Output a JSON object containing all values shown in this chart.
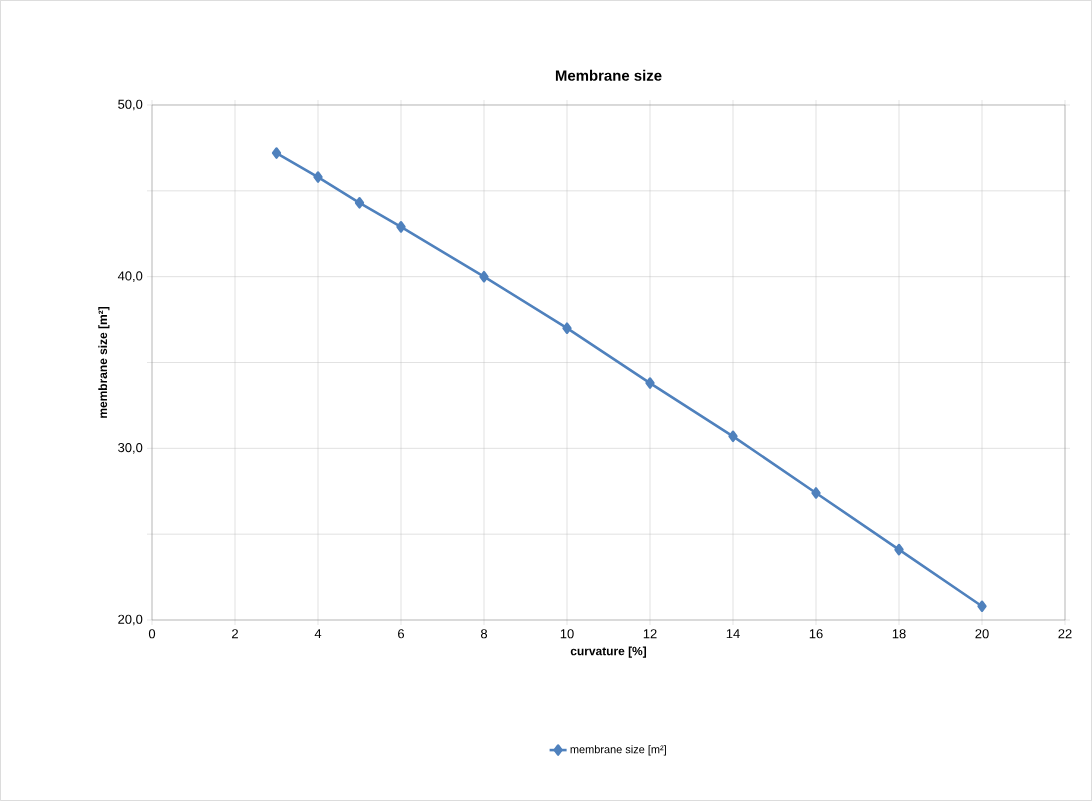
{
  "chart_data": {
    "type": "line",
    "title": "Membrane size",
    "xlabel": "curvature   [%]",
    "ylabel": "membrane size   [m²]",
    "series": [
      {
        "name": "membrane size [m²]",
        "color": "#4f81bd",
        "x": [
          3,
          4,
          5,
          6,
          8,
          10,
          12,
          14,
          16,
          18,
          20
        ],
        "values": [
          47.2,
          45.8,
          44.3,
          42.9,
          40.0,
          37.0,
          33.8,
          30.7,
          27.4,
          24.1,
          20.8
        ]
      }
    ],
    "xlim": [
      0,
      22
    ],
    "xticks": [
      0,
      2,
      4,
      6,
      8,
      10,
      12,
      14,
      16,
      18,
      20,
      22
    ],
    "ylim": [
      20,
      50
    ],
    "yticks": [
      {
        "value": 20,
        "label": "20,0"
      },
      {
        "value": 25,
        "label": null
      },
      {
        "value": 30,
        "label": "30,0"
      },
      {
        "value": 35,
        "label": null
      },
      {
        "value": 40,
        "label": "40,0"
      },
      {
        "value": 45,
        "label": null
      },
      {
        "value": 50,
        "label": "50,0"
      }
    ],
    "grid": true,
    "legend": "bottom",
    "marker": "diamond",
    "line_style": "solid"
  }
}
